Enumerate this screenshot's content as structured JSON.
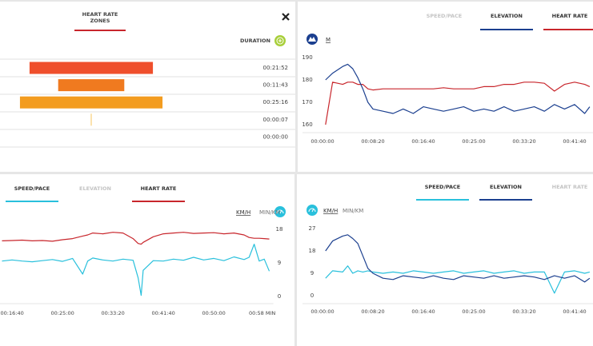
{
  "zones_panel": {
    "tab_lines": [
      "HEART RATE",
      "ZONES"
    ],
    "tab_color": "#c8262c",
    "duration_label": "DURATION",
    "zones": {
      "values": [
        1312,
        703,
        1516,
        7,
        0
      ],
      "value_labels": [
        "00:21:52",
        "00:11:43",
        "00:25:16",
        "00:00:07",
        "00:00:00"
      ],
      "colors": [
        "#ef4f2c",
        "#f07a1f",
        "#f39c1f",
        "#f6b93a",
        "#f8d25a"
      ]
    }
  },
  "chart_data": [
    {
      "type": "line",
      "tabs": [
        "SPEED/PACE",
        "ELEVATION",
        "HEART RATE"
      ],
      "units": [
        "M"
      ],
      "unit_selected": 0,
      "yaxis_side": "left",
      "x": [
        30,
        100,
        200,
        250,
        300,
        350,
        400,
        450,
        500,
        600,
        700,
        800,
        900,
        1000,
        1100,
        1200,
        1300,
        1400,
        1500,
        1600,
        1700,
        1800,
        1900,
        2000,
        2100,
        2200,
        2300,
        2400,
        2500,
        2600,
        2650
      ],
      "xlim": [
        0,
        2680
      ],
      "xticks": [
        {
          "value": 0,
          "label": "00:00:00"
        },
        {
          "value": 500,
          "label": "00:08:20"
        },
        {
          "value": 1000,
          "label": "00:16:40"
        },
        {
          "value": 1500,
          "label": "00:25:00"
        },
        {
          "value": 2000,
          "label": "00:33:20"
        },
        {
          "value": 2500,
          "label": "00:41:40"
        }
      ],
      "ylim": [
        158,
        192
      ],
      "yticks": [
        160,
        170,
        180,
        190
      ],
      "series": [
        {
          "name": "HEART RATE",
          "color": "#c8262c",
          "values": [
            160,
            179,
            178,
            179,
            179,
            178,
            178,
            176,
            175.5,
            176,
            176,
            176,
            176,
            176,
            176,
            176.5,
            176,
            176,
            176,
            177,
            177,
            178,
            178,
            179,
            179,
            178.5,
            175,
            178,
            179,
            178,
            177
          ]
        },
        {
          "name": "ELEVATION",
          "color": "#1b3f8f",
          "values": [
            180,
            183,
            186,
            187,
            185,
            181,
            176,
            170,
            167,
            166,
            165,
            167,
            165,
            168,
            167,
            166,
            167,
            168,
            166,
            167,
            166,
            168,
            166,
            167,
            168,
            166,
            169,
            167,
            169,
            165,
            168
          ]
        }
      ]
    },
    {
      "type": "line",
      "tabs": [
        "SPEED/PACE",
        "ELEVATION",
        "HEART RATE"
      ],
      "units": [
        "KM/H",
        "MIN/KM"
      ],
      "unit_selected": 0,
      "yaxis_side": "right",
      "x": [
        900,
        1000,
        1100,
        1200,
        1300,
        1400,
        1500,
        1600,
        1700,
        1750,
        1800,
        1900,
        2000,
        2100,
        2200,
        2250,
        2280,
        2300,
        2400,
        2500,
        2600,
        2700,
        2800,
        2900,
        3000,
        3100,
        3200,
        3300,
        3350,
        3400,
        3450,
        3500,
        3550
      ],
      "xlim": [
        880,
        3590
      ],
      "xticks": [
        {
          "value": 1000,
          "label": "00:16:40"
        },
        {
          "value": 1500,
          "label": "00:25:00"
        },
        {
          "value": 2000,
          "label": "00:33:20"
        },
        {
          "value": 2500,
          "label": "00:41:40"
        },
        {
          "value": 3000,
          "label": "00:50:00"
        },
        {
          "value": 3480,
          "label": "00:58 MIN"
        }
      ],
      "ylim": [
        -1,
        19
      ],
      "yticks": [
        0,
        9,
        18
      ],
      "series": [
        {
          "name": "HEART RATE",
          "color": "#c8262c",
          "values": [
            14.9,
            15,
            15.1,
            14.9,
            15,
            14.8,
            15.2,
            15.5,
            16.2,
            16.5,
            17,
            16.8,
            17.2,
            17,
            15.5,
            14.2,
            14,
            14.5,
            16,
            16.8,
            17,
            17.2,
            16.9,
            17,
            17.1,
            16.8,
            17,
            16.5,
            15.8,
            15.6,
            15.6,
            15.5,
            15.4
          ]
        },
        {
          "name": "SPEED/PACE",
          "color": "#29c0dc",
          "values": [
            9.5,
            9.8,
            9.5,
            9.3,
            9.6,
            9.9,
            9.4,
            10.2,
            6.0,
            9.5,
            10.3,
            9.8,
            9.5,
            10,
            9.7,
            5,
            0.3,
            7,
            9.6,
            9.5,
            10,
            9.7,
            10.5,
            9.8,
            10.2,
            9.6,
            10.6,
            9.9,
            10.5,
            14,
            9.5,
            10,
            6.8
          ]
        }
      ]
    },
    {
      "type": "line",
      "tabs": [
        "SPEED/PACE",
        "ELEVATION",
        "HEART RATE"
      ],
      "units": [
        "KM/H",
        "MIN/KM"
      ],
      "unit_selected": 0,
      "yaxis_side": "left",
      "x": [
        30,
        100,
        200,
        250,
        300,
        350,
        400,
        450,
        500,
        600,
        700,
        800,
        900,
        1000,
        1100,
        1200,
        1300,
        1400,
        1500,
        1600,
        1700,
        1800,
        1900,
        2000,
        2100,
        2200,
        2300,
        2400,
        2500,
        2600,
        2650
      ],
      "xlim": [
        0,
        2680
      ],
      "xticks": [
        {
          "value": 0,
          "label": "00:00:00"
        },
        {
          "value": 500,
          "label": "00:08:20"
        },
        {
          "value": 1000,
          "label": "00:16:40"
        },
        {
          "value": 1500,
          "label": "00:25:00"
        },
        {
          "value": 2000,
          "label": "00:33:20"
        },
        {
          "value": 2500,
          "label": "00:41:40"
        }
      ],
      "ylim": [
        -1,
        29
      ],
      "yticks": [
        0,
        9,
        18,
        27
      ],
      "series": [
        {
          "name": "SPEED/PACE",
          "color": "#29c0dc",
          "values": [
            7,
            10,
            9.5,
            12,
            9,
            10,
            9.5,
            10,
            9.5,
            9,
            9.5,
            9,
            10,
            9.5,
            9,
            9.5,
            10,
            9,
            9.5,
            10,
            9,
            9.5,
            10,
            9,
            9.5,
            9.5,
            1,
            9.5,
            10,
            9,
            9.5
          ]
        },
        {
          "name": "ELEVATION",
          "color": "#1b3f8f",
          "values": [
            18,
            22,
            24,
            24.5,
            23,
            21,
            16,
            11,
            9,
            7,
            6.5,
            8,
            7.5,
            7,
            8,
            7,
            6.5,
            8,
            7.5,
            7,
            8,
            7,
            7.5,
            8,
            7.5,
            6.5,
            8,
            7,
            8,
            5.5,
            7
          ]
        }
      ]
    }
  ]
}
